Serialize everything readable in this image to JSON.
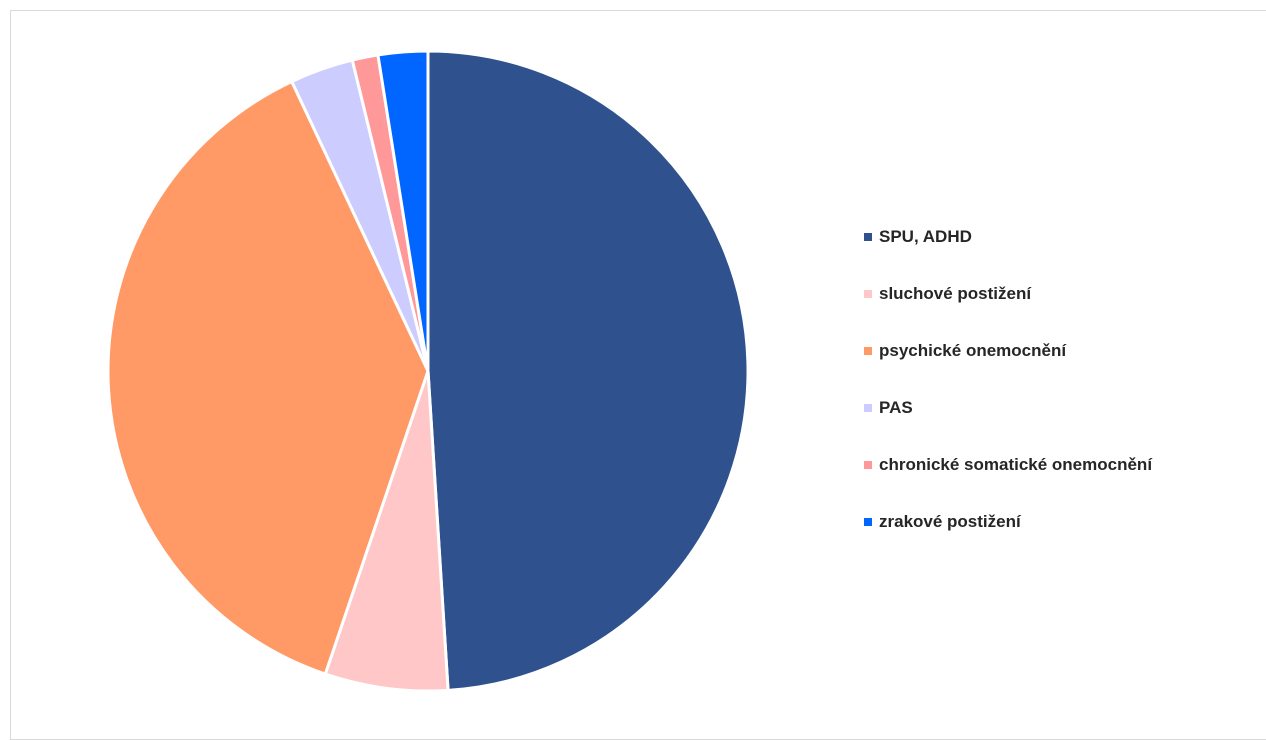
{
  "chart_data": {
    "type": "pie",
    "title": "",
    "categories": [
      "SPU, ADHD",
      "sluchové postižení",
      "psychické onemocnění",
      "PAS",
      "chronické somatické onemocnění",
      "zrakové postižení"
    ],
    "values": [
      49.0,
      6.2,
      37.8,
      3.2,
      1.3,
      2.5
    ],
    "colors": [
      "#2f528f",
      "#ffc7c7",
      "#ff9966",
      "#ccccff",
      "#ff9999",
      "#0066ff"
    ],
    "start_angle_deg": 0,
    "direction": "clockwise",
    "legend_position": "right"
  }
}
